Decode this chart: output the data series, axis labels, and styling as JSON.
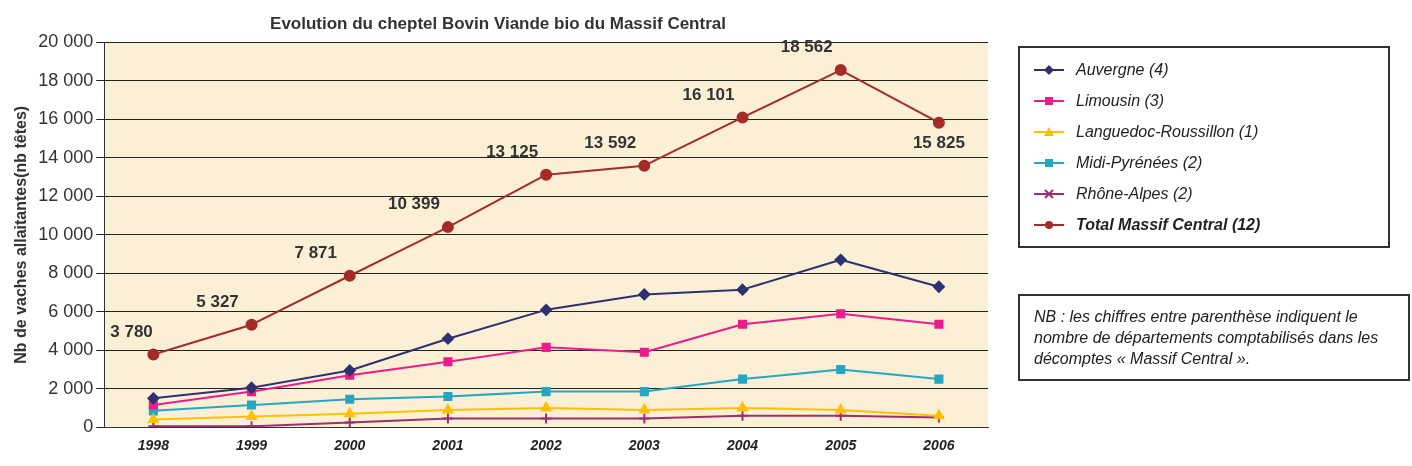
{
  "chart_data": {
    "type": "line",
    "title": "Evolution du cheptel Bovin Viande bio du Massif Central",
    "ylabel": "Nb de vaches allaitantes(nb têtes)",
    "categories": [
      "1998",
      "1999",
      "2000",
      "2001",
      "2002",
      "2003",
      "2004",
      "2005",
      "2006"
    ],
    "ylim": [
      0,
      20000
    ],
    "yticks": [
      {
        "value": 0,
        "label": "0"
      },
      {
        "value": 2000,
        "label": "2 000"
      },
      {
        "value": 4000,
        "label": "4 000"
      },
      {
        "value": 6000,
        "label": "6 000"
      },
      {
        "value": 8000,
        "label": "8 000"
      },
      {
        "value": 10000,
        "label": "10 000"
      },
      {
        "value": 12000,
        "label": "12 000"
      },
      {
        "value": 14000,
        "label": "14 000"
      },
      {
        "value": 16000,
        "label": "16 000"
      },
      {
        "value": 18000,
        "label": "18 000"
      },
      {
        "value": 20000,
        "label": "20 000"
      }
    ],
    "grid": "y",
    "legend": "right",
    "series": [
      {
        "name": "Auvergne (4)",
        "color": "#2e3170",
        "marker": "diamond",
        "values": [
          1500,
          2050,
          2950,
          4600,
          6100,
          6900,
          7150,
          8700,
          7300
        ]
      },
      {
        "name": "Limousin (3)",
        "color": "#ec1c8c",
        "marker": "square",
        "values": [
          1150,
          1850,
          2700,
          3400,
          4150,
          3900,
          5350,
          5900,
          5350
        ]
      },
      {
        "name": "Languedoc-Roussillon (1)",
        "color": "#ffc000",
        "marker": "triangle",
        "values": [
          400,
          550,
          700,
          900,
          1000,
          900,
          1000,
          900,
          600
        ]
      },
      {
        "name": "Midi-Pyrénées (2)",
        "color": "#27a6c4",
        "marker": "square",
        "values": [
          850,
          1150,
          1450,
          1600,
          1850,
          1850,
          2500,
          3000,
          2500
        ]
      },
      {
        "name": "Rhône-Alpes (2)",
        "color": "#9b2f6e",
        "marker": "cross",
        "values": [
          50,
          50,
          250,
          450,
          450,
          450,
          600,
          600,
          500
        ]
      },
      {
        "name": "Total Massif Central (12)",
        "color": "#a52a2a",
        "marker": "circle",
        "values": [
          3780,
          5327,
          7871,
          10399,
          13125,
          13592,
          16101,
          18562,
          15825
        ],
        "value_labels": [
          "3 780",
          "5 327",
          "7 871",
          "10 399",
          "13 125",
          "13 592",
          "16 101",
          "18 562",
          "15 825"
        ]
      }
    ],
    "annotations": [
      "NB : les chiffres entre parenthèse indiquent le nombre de départements comptabilisés dans les décomptes « Massif Central »."
    ]
  }
}
